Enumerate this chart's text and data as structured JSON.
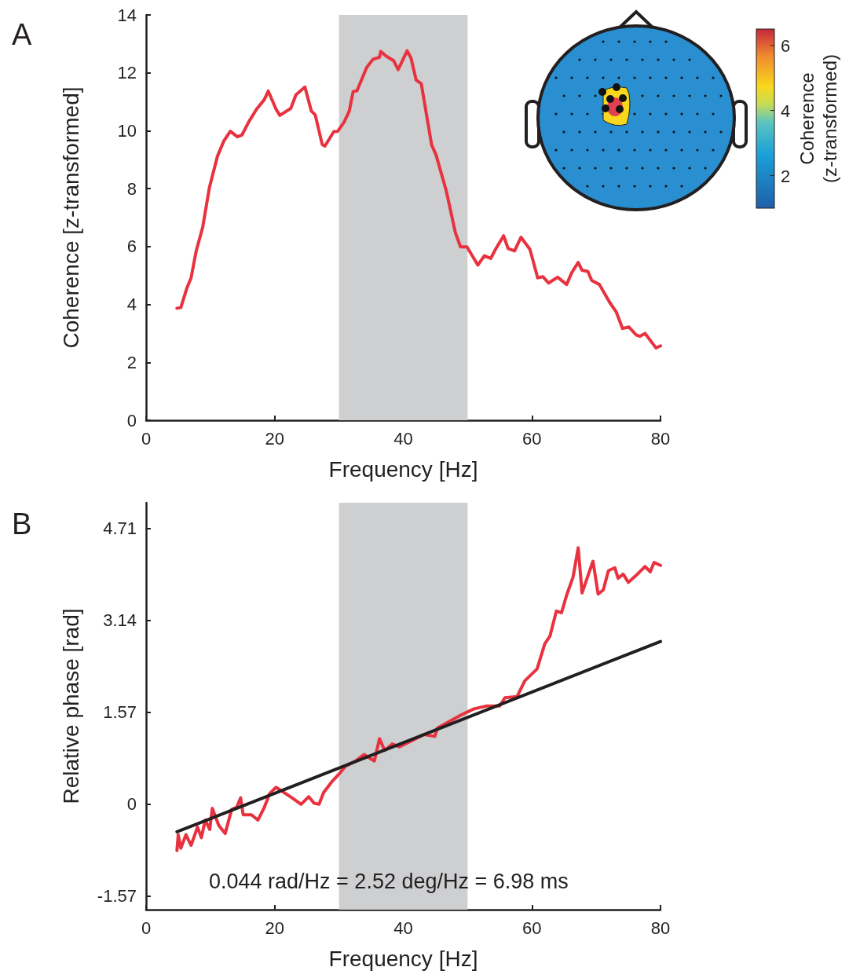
{
  "chart_data": [
    {
      "type": "line",
      "title": "A",
      "xlabel": "Frequency [Hz]",
      "ylabel": "Coherence [z-transformed]",
      "clabel": "Coherence (z-transformed)",
      "clim": [
        1,
        6.5
      ],
      "cticks": [
        2,
        4,
        6
      ],
      "xlim": [
        0,
        80
      ],
      "xticks": [
        0,
        20,
        40,
        60,
        80
      ],
      "ylim": [
        0,
        14
      ],
      "yticks": [
        0,
        2,
        4,
        6,
        8,
        10,
        12,
        14
      ],
      "grid": false,
      "marker": "none",
      "bands": [
        {
          "axis": "x",
          "from": 30,
          "to": 50,
          "color": "#cdcfd1"
        }
      ],
      "series": [
        {
          "color": "#e8323f",
          "x": [
            4.8,
            5.4,
            6.4,
            7.0,
            7.8,
            8.8,
            9.85,
            11.1,
            12.1,
            13.1,
            14.2,
            14.9,
            16.0,
            17.2,
            18.4,
            19.0,
            20.2,
            20.8,
            22.5,
            23.3,
            24.7,
            25.7,
            26.3,
            27.4,
            27.8,
            29.2,
            29.8,
            30.8,
            31.6,
            32.2,
            32.8,
            34.3,
            35.3,
            36.3,
            36.5,
            37.3,
            38.5,
            39.2,
            40.6,
            41.2,
            42.0,
            42.8,
            44.4,
            45.1,
            46.7,
            48.1,
            48.9,
            49.9,
            51.6,
            52.6,
            53.6,
            54.4,
            55.6,
            56.3,
            57.3,
            58.3,
            59.7,
            60.9,
            61.7,
            62.6,
            64.0,
            65.4,
            66.2,
            67.2,
            67.8,
            68.7,
            69.3,
            70.5,
            72.1,
            73.1,
            74.1,
            75.1,
            76.2,
            76.8,
            77.6,
            79.3,
            80.0
          ],
          "values": [
            3.87,
            3.89,
            4.6,
            4.92,
            5.85,
            6.66,
            8.04,
            9.12,
            9.65,
            9.98,
            9.79,
            9.85,
            10.32,
            10.75,
            11.08,
            11.37,
            10.75,
            10.53,
            10.77,
            11.24,
            11.51,
            10.68,
            10.55,
            9.52,
            9.47,
            9.97,
            9.98,
            10.3,
            10.68,
            11.35,
            11.38,
            12.18,
            12.47,
            12.54,
            12.74,
            12.58,
            12.42,
            12.11,
            12.76,
            12.51,
            11.75,
            11.62,
            9.52,
            9.16,
            7.91,
            6.48,
            5.99,
            5.99,
            5.36,
            5.68,
            5.59,
            5.93,
            6.37,
            5.93,
            5.85,
            6.32,
            5.9,
            4.92,
            4.96,
            4.74,
            4.94,
            4.69,
            5.1,
            5.45,
            5.18,
            5.14,
            4.83,
            4.69,
            4.07,
            3.75,
            3.17,
            3.22,
            2.95,
            2.9,
            3.0,
            2.5,
            2.57
          ]
        }
      ]
    },
    {
      "type": "line",
      "title": "B",
      "xlabel": "Frequency [Hz]",
      "ylabel": "Relative phase [rad]",
      "annotations": [
        "0.044 rad/Hz = 2.52 deg/Hz = 6.98 ms"
      ],
      "xlim": [
        0,
        80
      ],
      "xticks": [
        0,
        20,
        40,
        60,
        80
      ],
      "ylim": [
        -1.8,
        5.15
      ],
      "yticks": [
        -1.57,
        0,
        1.57,
        3.14,
        4.71
      ],
      "grid": false,
      "marker": "none",
      "bands": [
        {
          "axis": "x",
          "from": 30,
          "to": 50,
          "color": "#cdcfd1"
        }
      ],
      "series": [
        {
          "color": "#e8323f",
          "x": [
            4.8,
            5.0,
            5.4,
            6.2,
            7.0,
            8.0,
            8.6,
            9.2,
            9.9,
            10.3,
            11.3,
            12.3,
            13.3,
            14.1,
            14.7,
            15.1,
            16.4,
            17.4,
            18.4,
            19.2,
            20.2,
            21.2,
            22.7,
            24.1,
            25.3,
            26.1,
            26.9,
            27.6,
            29.0,
            30.2,
            31.0,
            32.6,
            33.9,
            35.5,
            36.3,
            37.1,
            38.3,
            39.4,
            43.2,
            44.9,
            45.3,
            47.1,
            48.9,
            51.0,
            53.0,
            55.0,
            55.8,
            57.7,
            58.9,
            60.8,
            62.0,
            62.8,
            63.8,
            64.6,
            65.4,
            66.4,
            67.2,
            67.8,
            68.8,
            69.5,
            70.3,
            71.1,
            71.9,
            72.9,
            73.4,
            74.2,
            75.0,
            76.4,
            77.6,
            78.4,
            79.0,
            80.0
          ],
          "values": [
            -0.79,
            -0.52,
            -0.75,
            -0.52,
            -0.7,
            -0.39,
            -0.57,
            -0.27,
            -0.43,
            -0.07,
            -0.36,
            -0.5,
            -0.09,
            -0.05,
            0.11,
            -0.18,
            -0.18,
            -0.27,
            -0.05,
            0.18,
            0.29,
            0.22,
            0.11,
            0.0,
            0.13,
            0.02,
            0.0,
            0.2,
            0.4,
            0.54,
            0.65,
            0.74,
            0.85,
            0.74,
            1.12,
            0.92,
            1.03,
            0.98,
            1.19,
            1.16,
            1.3,
            1.41,
            1.52,
            1.63,
            1.68,
            1.68,
            1.82,
            1.84,
            2.11,
            2.31,
            2.74,
            2.87,
            3.3,
            3.27,
            3.57,
            3.88,
            4.38,
            3.61,
            3.93,
            4.15,
            3.59,
            3.66,
            3.99,
            4.04,
            3.86,
            3.93,
            3.79,
            3.93,
            4.06,
            3.97,
            4.13,
            4.08
          ]
        },
        {
          "type": "line",
          "color": "#231f20",
          "x": [
            4.8,
            80
          ],
          "values": [
            -0.47,
            2.78
          ]
        }
      ]
    }
  ]
}
